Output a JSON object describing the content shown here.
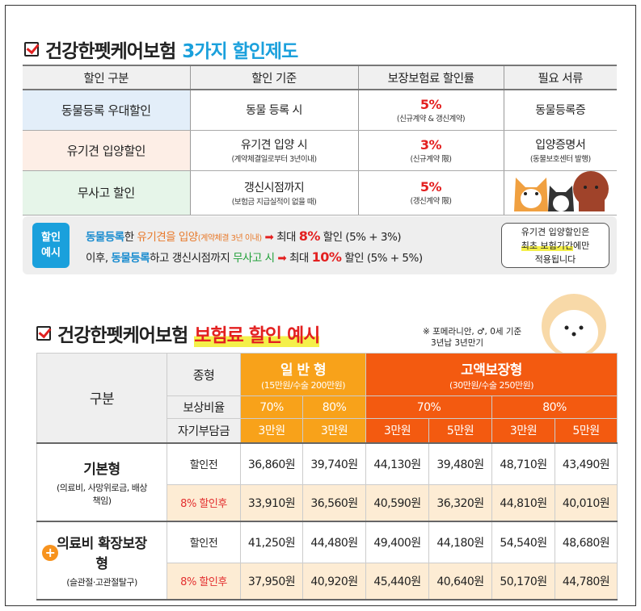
{
  "section1": {
    "title_main": "건강한펫케어보험",
    "title_accent": "3가지 할인제도",
    "accent_color": "#1aa0dc",
    "headers": [
      "할인 구분",
      "할인 기준",
      "보장보험료 할인률",
      "필요 서류"
    ],
    "rows": [
      {
        "type": "동물등록 우대할인",
        "criteria": "동물 등록 시",
        "criteria_note": "",
        "rate": "5%",
        "rate_note": "(신규계약 & 갱신계약)",
        "doc": "동물등록증",
        "doc_note": ""
      },
      {
        "type": "유기견 입양할인",
        "criteria": "유기견 입양 시",
        "criteria_note": "(계약체결일로부터 3년이내)",
        "rate": "3%",
        "rate_note": "(신규계약 限)",
        "doc": "입양증명서",
        "doc_note": "(동물보호센터 발행)"
      },
      {
        "type": "무사고 할인",
        "criteria": "갱신시점까지",
        "criteria_note": "(보험금 지급실적이 없을 때)",
        "rate": "5%",
        "rate_note": "(갱신계약 限)",
        "doc": "",
        "doc_note": ""
      }
    ],
    "example": {
      "badge": [
        "할인",
        "예시"
      ],
      "line1": {
        "a": "동물등록",
        "b": "한 ",
        "c": "유기견을 입양",
        "d": "(계약체결 3년 이내)",
        "e": "최대 ",
        "f": "8%",
        "g": " 할인 (5% + 3%)"
      },
      "line2": {
        "a": "이후, ",
        "b": "동물등록",
        "c": "하고 갱신시점까지 ",
        "d": "무사고 시",
        "e": "최대 ",
        "f": "10%",
        "g": " 할인 (5% + 5%)"
      },
      "note": {
        "l1": "유기견 입양할인은",
        "l2a": "최초 보험기간",
        "l2b": "에만",
        "l3": "적용됩니다"
      }
    }
  },
  "section2": {
    "title_main": "건강한펫케어보험",
    "title_accent": "보험료 할인 예시",
    "note": [
      "※ 포메라니안, ♂, 0세 기준",
      "3년납 3년만기"
    ],
    "header": {
      "gubun": "구분",
      "jonghyeong": "종형",
      "ratio": "보상비율",
      "deductible": "자기부담금",
      "plan1": "일 반 형",
      "plan1_sub": "(15만원/수술 200만원)",
      "plan2": "고액보장형",
      "plan2_sub": "(30만원/수술 250만원)",
      "ratios": [
        "70%",
        "80%",
        "70%",
        "80%"
      ],
      "deductibles": [
        "3만원",
        "3만원",
        "3만원",
        "5만원",
        "3만원",
        "5만원"
      ]
    },
    "groups": [
      {
        "name": "기본형",
        "sub": "(의료비, 사망위로금, 배상책임)",
        "before_label": "할인전",
        "after_label": "8% 할인후",
        "before": [
          "36,860원",
          "39,740원",
          "44,130원",
          "39,480원",
          "48,710원",
          "43,490원"
        ],
        "after": [
          "33,910원",
          "36,560원",
          "40,590원",
          "36,320원",
          "44,810원",
          "40,010원"
        ]
      },
      {
        "name": "의료비 확장보장형",
        "sub": "(슬관절·고관절탈구)",
        "before_label": "할인전",
        "after_label": "8% 할인후",
        "before": [
          "41,250원",
          "44,480원",
          "49,400원",
          "44,180원",
          "54,540원",
          "48,680원"
        ],
        "after": [
          "37,950원",
          "40,920원",
          "45,440원",
          "40,640원",
          "50,170원",
          "44,780원"
        ]
      }
    ],
    "colors": {
      "general": "#f8a21a",
      "high": "#f35a10",
      "discount_row": "#fdecd4"
    }
  }
}
